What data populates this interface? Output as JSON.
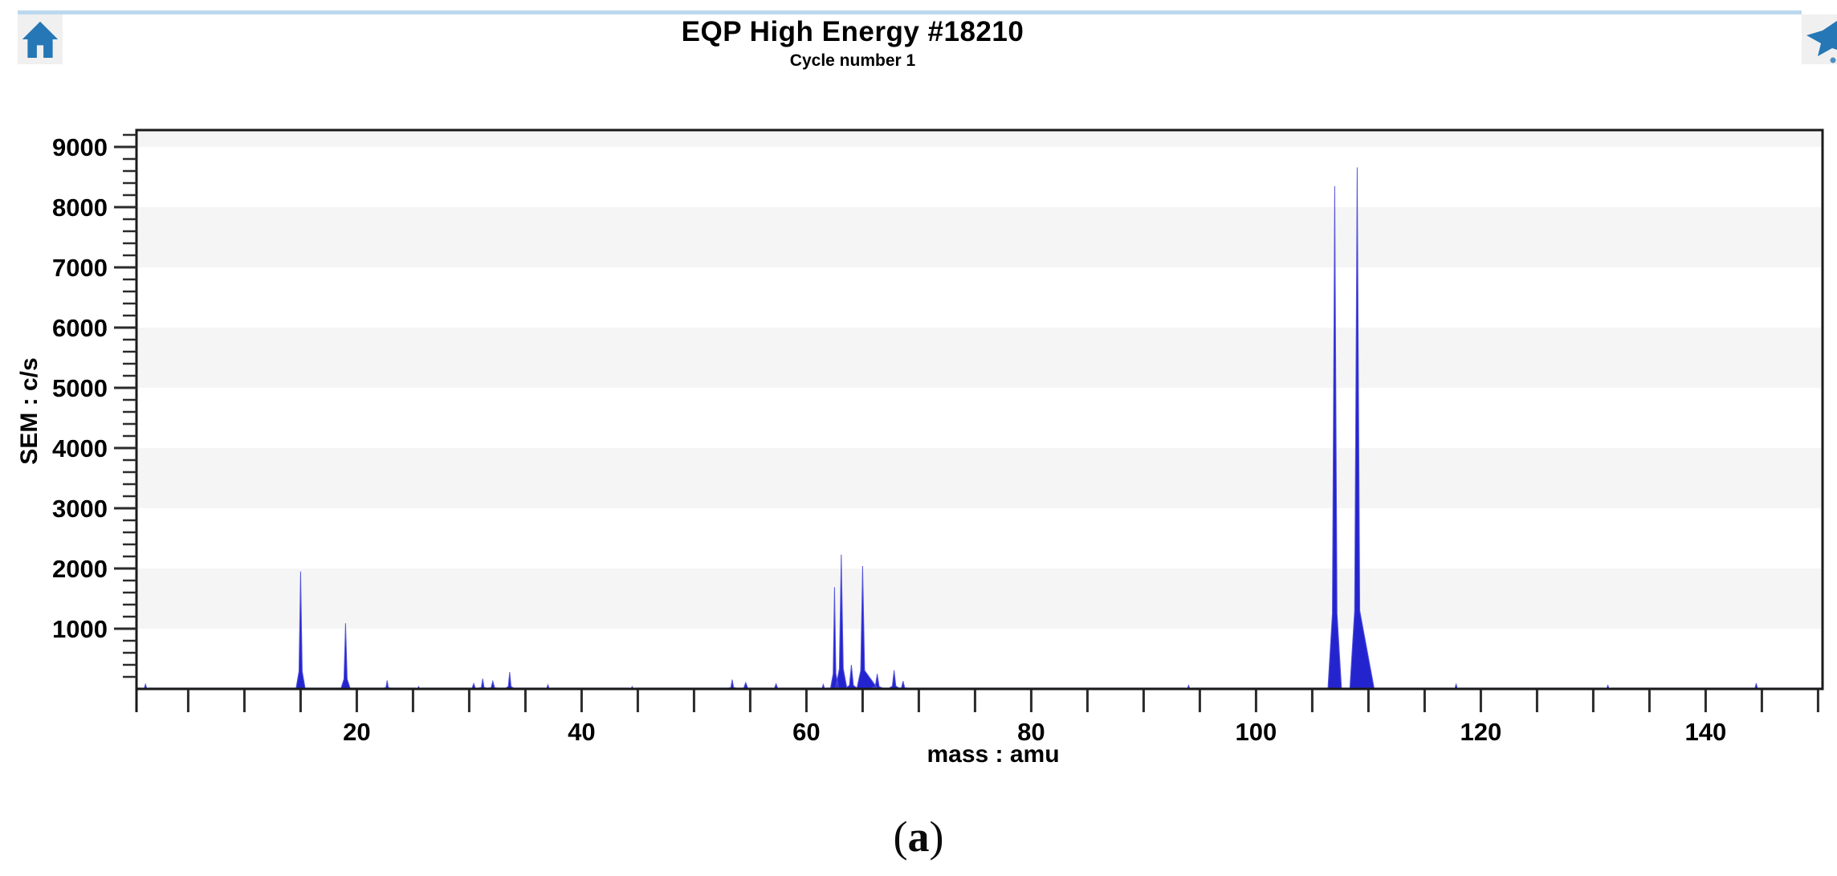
{
  "header": {
    "icon_color": "#2577b5",
    "icon_bg": "#f0f0f0",
    "accent_line_color": "#bcd8ee"
  },
  "caption": {
    "open": "(",
    "letter": "a",
    "close": ")"
  },
  "chart_data": {
    "type": "area",
    "title": "EQP High Energy #18210",
    "subtitle": "Cycle number 1",
    "xlabel": "mass : amu",
    "ylabel": "SEM : c/s",
    "xlim": [
      0.4,
      150.4
    ],
    "ylim": [
      0,
      9280
    ],
    "grid": "alternating horizontal bands",
    "legend": "none",
    "x_ticks": [
      5,
      10,
      15,
      20,
      25,
      30,
      35,
      40,
      45,
      50,
      55,
      60,
      65,
      70,
      75,
      80,
      85,
      90,
      95,
      100,
      105,
      110,
      115,
      120,
      125,
      130,
      135,
      140,
      145,
      150
    ],
    "x_tick_labels": [
      20,
      40,
      60,
      80,
      100,
      120,
      140
    ],
    "y_ticks": [
      1000,
      2000,
      3000,
      4000,
      5000,
      6000,
      7000,
      8000,
      9000
    ],
    "y_minor_step": 200,
    "bands": [
      [
        1000,
        2000
      ],
      [
        3000,
        4000
      ],
      [
        5000,
        6000
      ],
      [
        7000,
        8000
      ],
      [
        9000,
        9280
      ]
    ],
    "band_color": "#f5f5f5",
    "fill_color": "#2424cf",
    "line_color": "#5555dd",
    "axis_color": "#1a1a1a",
    "baseline_cs": 15,
    "peaks_mass_height_width_tail": [
      [
        1.2,
        80,
        0.3,
        0
      ],
      [
        15.0,
        1950,
        0.4,
        0
      ],
      [
        19.0,
        1090,
        0.4,
        0
      ],
      [
        22.7,
        140,
        0.3,
        0
      ],
      [
        25.5,
        40,
        0.3,
        0
      ],
      [
        30.4,
        90,
        0.4,
        0
      ],
      [
        31.2,
        170,
        0.35,
        0
      ],
      [
        32.1,
        130,
        0.45,
        0
      ],
      [
        33.6,
        280,
        0.35,
        0
      ],
      [
        37.0,
        70,
        0.3,
        0
      ],
      [
        44.5,
        40,
        0.3,
        0
      ],
      [
        53.4,
        155,
        0.35,
        0
      ],
      [
        54.6,
        105,
        0.5,
        0
      ],
      [
        57.3,
        85,
        0.4,
        0
      ],
      [
        61.5,
        75,
        0.3,
        0
      ],
      [
        62.5,
        1690,
        0.35,
        0
      ],
      [
        63.1,
        2230,
        0.5,
        0
      ],
      [
        64.0,
        400,
        0.5,
        0
      ],
      [
        65.0,
        2040,
        0.5,
        1.3
      ],
      [
        66.3,
        250,
        0.5,
        0
      ],
      [
        67.8,
        310,
        0.45,
        0
      ],
      [
        68.6,
        130,
        0.4,
        0
      ],
      [
        94.0,
        60,
        0.3,
        0
      ],
      [
        107.0,
        8350,
        0.6,
        0
      ],
      [
        109.0,
        8660,
        0.65,
        1.5
      ],
      [
        117.8,
        80,
        0.3,
        0
      ],
      [
        131.3,
        60,
        0.3,
        0
      ],
      [
        144.5,
        95,
        0.3,
        0
      ]
    ]
  }
}
